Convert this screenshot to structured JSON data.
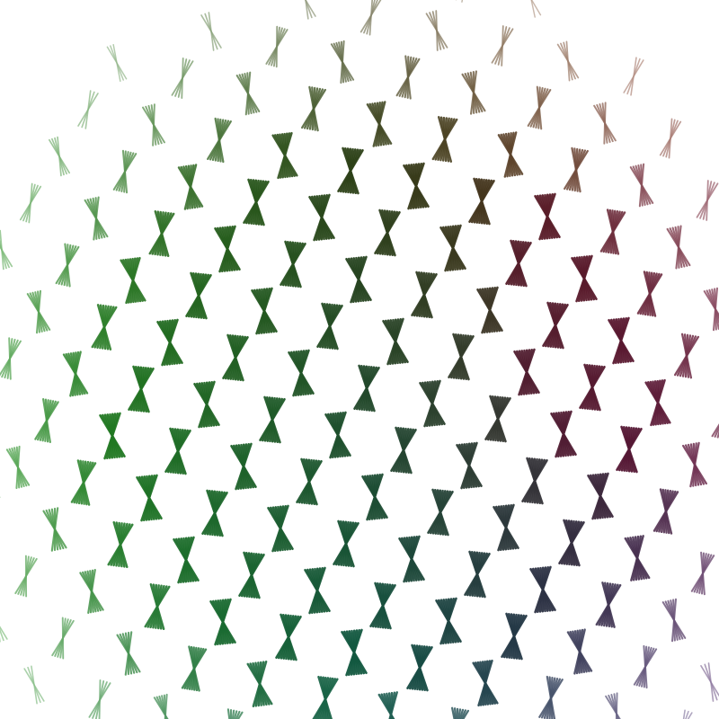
{
  "artwork": {
    "kind": "generative bow-tie lattice",
    "background": "#ffffff",
    "glyph": "hourglass-bowtie",
    "palette": {
      "left_green": "#2f8a1f",
      "top_olive": "#3a3a08",
      "top_right_red": "#8a2a0a",
      "right_crimson": "#6a0a30",
      "bottom_right_purple": "#35105a",
      "bottom_teal": "#0f5a4a"
    }
  }
}
